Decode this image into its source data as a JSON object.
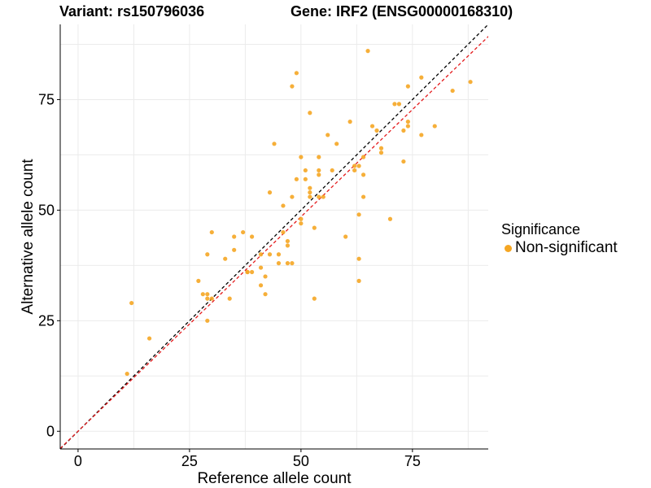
{
  "colors": {
    "point": "#F5A623",
    "identity_line": "#000000",
    "fit_line": "#E41A1C",
    "grid": "#EBEBEB",
    "axis": "#000000"
  },
  "title": {
    "variant": "Variant: rs150796036",
    "gene": "Gene: IRF2 (ENSG00000168310)"
  },
  "legend": {
    "title": "Significance",
    "items": [
      {
        "label": "Non-significant",
        "color": "#F5A623"
      }
    ]
  },
  "chart_data": {
    "type": "scatter",
    "title": "Variant: rs150796036    Gene: IRF2 (ENSG00000168310)",
    "xlabel": "Reference allele count",
    "ylabel": "Alternative allele count",
    "xlim": [
      -4,
      92
    ],
    "ylim": [
      -4,
      92
    ],
    "xticks": [
      0,
      25,
      50,
      75
    ],
    "yticks": [
      0,
      25,
      50,
      75
    ],
    "xtick_labels": [
      "0",
      "25",
      "50",
      "75"
    ],
    "ytick_labels": [
      "0",
      "25",
      "50",
      "75"
    ],
    "grid": true,
    "legend_position": "right",
    "reference_lines": [
      {
        "name": "identity",
        "slope": 1.0,
        "intercept": 0,
        "style": "dashed",
        "color": "#000000"
      },
      {
        "name": "fit",
        "slope": 0.97,
        "intercept": 0,
        "style": "dashed",
        "color": "#E41A1C"
      }
    ],
    "series": [
      {
        "name": "Non-significant",
        "x": [
          11,
          12,
          16,
          27,
          28,
          29,
          29,
          29,
          29,
          30,
          30,
          33,
          34,
          35,
          35,
          37,
          38,
          38,
          39,
          39,
          41,
          41,
          41,
          42,
          42,
          43,
          43,
          44,
          45,
          45,
          46,
          46,
          47,
          47,
          47,
          48,
          48,
          48,
          49,
          49,
          50,
          50,
          50,
          51,
          51,
          52,
          52,
          52,
          52,
          53,
          53,
          54,
          54,
          54,
          54,
          55,
          56,
          57,
          58,
          60,
          61,
          62,
          62,
          63,
          63,
          63,
          63,
          64,
          64,
          64,
          65,
          66,
          67,
          68,
          68,
          70,
          71,
          72,
          73,
          73,
          74,
          74,
          74,
          77,
          77,
          80,
          84,
          88
        ],
        "y": [
          13,
          29,
          21,
          34,
          31,
          40,
          30,
          31,
          25,
          45,
          30,
          39,
          30,
          41,
          44,
          45,
          36,
          36,
          36,
          44,
          37,
          33,
          40,
          35,
          31,
          40,
          54,
          65,
          40,
          38,
          51,
          45,
          42,
          43,
          38,
          53,
          78,
          38,
          81,
          57,
          48,
          62,
          47,
          57,
          59,
          55,
          53,
          54,
          72,
          30,
          46,
          53,
          62,
          59,
          58,
          53,
          67,
          59,
          65,
          44,
          70,
          60,
          59,
          34,
          39,
          49,
          60,
          62,
          58,
          53,
          86,
          69,
          68,
          64,
          63,
          48,
          74,
          74,
          68,
          61,
          78,
          70,
          69,
          80,
          67,
          69,
          77,
          79
        ]
      }
    ]
  }
}
